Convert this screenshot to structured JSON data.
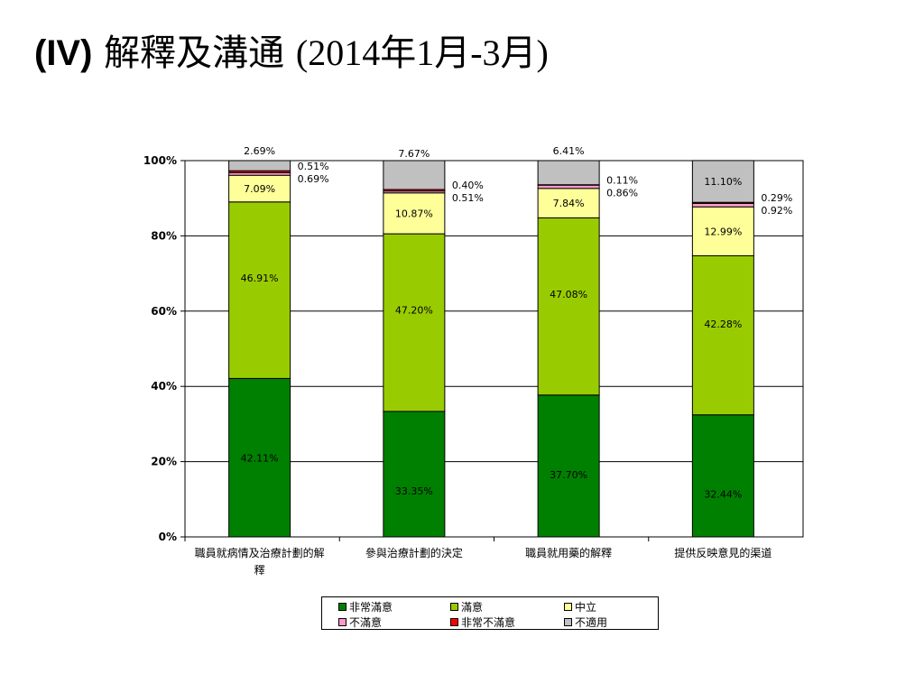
{
  "title": {
    "prefix": "(IV)",
    "main": "解釋及溝通",
    "sub": "(2014年1月-3月)"
  },
  "chart_data": {
    "type": "stacked_bar",
    "categories": [
      "職員就病情及治療計劃的解釋",
      "參與治療計劃的決定",
      "職員就用藥的解釋",
      "提供反映意見的渠道"
    ],
    "series": [
      {
        "name": "非常滿意",
        "color": "#008000",
        "values": [
          42.11,
          33.35,
          37.7,
          32.44
        ],
        "labels": [
          "42.11%",
          "33.35%",
          "37.70%",
          "32.44%"
        ]
      },
      {
        "name": "滿意",
        "color": "#99CC00",
        "values": [
          46.91,
          47.2,
          47.08,
          42.28
        ],
        "labels": [
          "46.91%",
          "47.20%",
          "47.08%",
          "42.28%"
        ]
      },
      {
        "name": "中立",
        "color": "#FFFF99",
        "values": [
          7.09,
          10.87,
          7.84,
          12.99
        ],
        "labels": [
          "7.09%",
          "10.87%",
          "7.84%",
          "12.99%"
        ]
      },
      {
        "name": "不滿意",
        "color": "#FF99CC",
        "values": [
          0.69,
          0.51,
          0.86,
          0.92
        ],
        "labels": [
          "0.69%",
          "0.51%",
          "0.86%",
          "0.92%"
        ]
      },
      {
        "name": "非常不滿意",
        "color": "#FF0000",
        "values": [
          0.51,
          0.4,
          0.11,
          0.29
        ],
        "labels": [
          "0.51%",
          "0.40%",
          "0.11%",
          "0.29%"
        ]
      },
      {
        "name": "不適用",
        "color": "#C0C0C0",
        "values": [
          2.69,
          7.67,
          6.41,
          11.1
        ],
        "labels": [
          "2.69%",
          "7.67%",
          "6.41%",
          "11.10%"
        ]
      }
    ],
    "y_ticks": [
      "0%",
      "20%",
      "40%",
      "60%",
      "80%",
      "100%"
    ],
    "ylim": [
      0,
      100
    ],
    "grid": true,
    "legend_position": "bottom"
  }
}
